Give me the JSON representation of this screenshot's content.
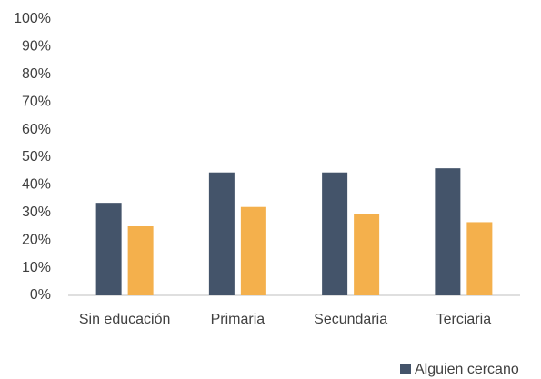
{
  "chart_data": {
    "type": "bar",
    "categories": [
      "Sin educación",
      "Primaria",
      "Secundaria",
      "Terciaria"
    ],
    "series": [
      {
        "name": "Alguien cercano",
        "color": "#44546a",
        "values": [
          33.5,
          44.5,
          44.5,
          46
        ]
      },
      {
        "color": "#f4b04c",
        "values": [
          25,
          32,
          29.5,
          26.5
        ]
      }
    ],
    "ylim": [
      0,
      100
    ],
    "yticks": [
      {
        "value": 0,
        "label": "0%"
      },
      {
        "value": 10,
        "label": "10%"
      },
      {
        "value": 20,
        "label": "20%"
      },
      {
        "value": 30,
        "label": "30%"
      },
      {
        "value": 40,
        "label": "40%"
      },
      {
        "value": 50,
        "label": "50%"
      },
      {
        "value": 60,
        "label": "60%"
      },
      {
        "value": 70,
        "label": "70%"
      },
      {
        "value": 80,
        "label": "80%"
      },
      {
        "value": 90,
        "label": "90%"
      },
      {
        "value": 100,
        "label": "100%"
      }
    ],
    "grid": false,
    "legend": "bottom-right"
  }
}
